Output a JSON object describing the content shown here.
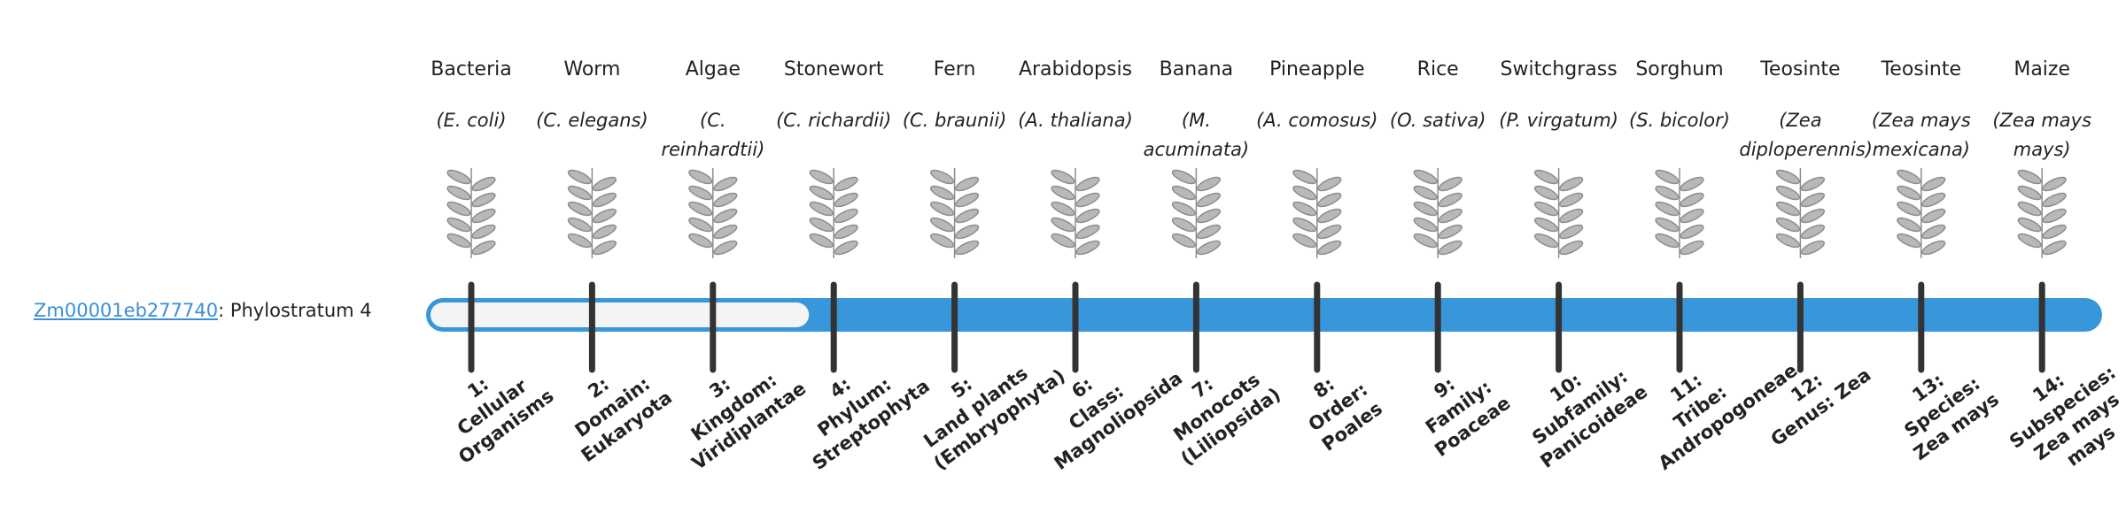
{
  "gene": {
    "id": "Zm00001eb277740",
    "separator": ":",
    "label": "Phylostratum",
    "stratum": 4
  },
  "organisms": [
    {
      "name": "Bacteria",
      "species": "(E. coli)"
    },
    {
      "name": "Worm",
      "species": "(C. elegans)"
    },
    {
      "name": "Algae",
      "species": "(C. reinhardtii)"
    },
    {
      "name": "Stonewort",
      "species": "(C. richardii)"
    },
    {
      "name": "Fern",
      "species": "(C. braunii)"
    },
    {
      "name": "Arabidopsis",
      "species": "(A. thaliana)"
    },
    {
      "name": "Banana",
      "species": "(M. acuminata)"
    },
    {
      "name": "Pineapple",
      "species": "(A. comosus)"
    },
    {
      "name": "Rice",
      "species": "(O. sativa)"
    },
    {
      "name": "Switchgrass",
      "species": "(P. virgatum)"
    },
    {
      "name": "Sorghum",
      "species": "(S. bicolor)"
    },
    {
      "name": "Teosinte",
      "species": "(Zea diploperennis)"
    },
    {
      "name": "Teosinte",
      "species": "(Zea mays mexicana)"
    },
    {
      "name": "Maize",
      "species": "(Zea mays mays)"
    }
  ],
  "strata": [
    {
      "number": "1:",
      "name": "Cellular Organisms"
    },
    {
      "number": "2:",
      "name": "Domain: Eukaryota"
    },
    {
      "number": "3:",
      "name": "Kingdom: Viridiplantae"
    },
    {
      "number": "4:",
      "name": "Phylum: Streptophyta"
    },
    {
      "number": "5:",
      "name": "Land plants (Embryophyta)"
    },
    {
      "number": "6:",
      "name": "Class: Magnoliopsida"
    },
    {
      "number": "7:",
      "name": "Monocots (Liliopsida)"
    },
    {
      "number": "8:",
      "name": "Order: Poales"
    },
    {
      "number": "9:",
      "name": "Family: Poaceae"
    },
    {
      "number": "10:",
      "name": "Subfamily: Panicoideae"
    },
    {
      "number": "11:",
      "name": "Tribe: Andropogoneae"
    },
    {
      "number": "12:",
      "name": "Genus: Zea"
    },
    {
      "number": "13:",
      "name": "Species: Zea mays"
    },
    {
      "number": "14:",
      "name": "Subspecies: Zea mays mays"
    }
  ]
}
